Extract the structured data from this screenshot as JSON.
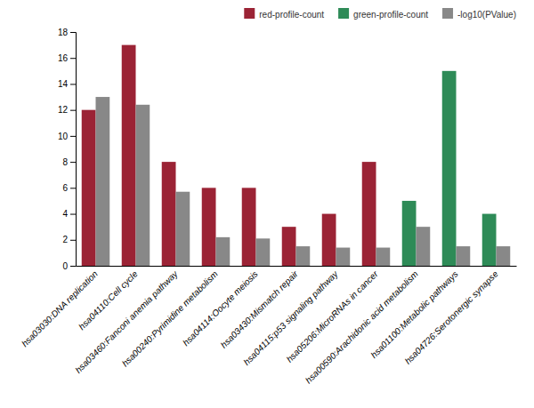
{
  "chart_data": {
    "type": "bar",
    "categories": [
      "hsa03030:DNA replication",
      "hsa04110:Cell cycle",
      "hsa03460:Fanconi anemia pathway",
      "hsa00240:Pyrimidine metabolism",
      "hsa04114:Oocyte meiosis",
      "hsa03430:Mismatch repair",
      "hsa04115:p53 signaling pathway",
      "hsa05206:MicroRNAs in cancer",
      "hsa00590:Arachidonic acid metabolism",
      "hsa01100:Metabolic pathways",
      "hsa04726:Serotonergic synapse"
    ],
    "series": [
      {
        "name": "red-profile-count",
        "color": "#9b2335",
        "values": [
          12,
          17,
          8,
          6,
          6,
          3,
          4,
          8,
          0,
          0,
          0
        ]
      },
      {
        "name": "green-profile-count",
        "color": "#2e8b57",
        "values": [
          0,
          0,
          0,
          0,
          0,
          0,
          0,
          0,
          5,
          15,
          4
        ]
      },
      {
        "name": "-log10(PValue)",
        "color": "#888888",
        "values": [
          13,
          12.4,
          5.7,
          2.2,
          2.1,
          1.5,
          1.4,
          1.4,
          3.0,
          1.5,
          1.5
        ]
      }
    ],
    "ylim": [
      0,
      18
    ],
    "yticks": [
      0,
      2,
      4,
      6,
      8,
      10,
      12,
      14,
      16,
      18
    ],
    "grid": false,
    "legend": "upper right"
  }
}
